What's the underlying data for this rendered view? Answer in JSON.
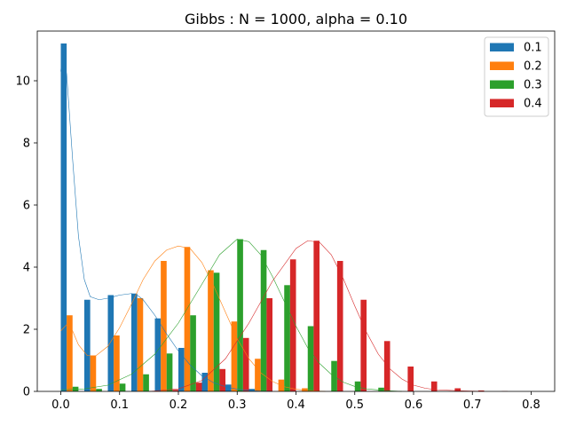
{
  "chart_data": {
    "type": "bar",
    "title": "Gibbs : N = 1000, alpha = 0.10",
    "xlabel": "",
    "ylabel": "",
    "xlim": [
      -0.04,
      0.84
    ],
    "ylim": [
      0,
      11.6
    ],
    "xticks": [
      0.0,
      0.1,
      0.2,
      0.3,
      0.4,
      0.5,
      0.6,
      0.7,
      0.8
    ],
    "xtick_labels": [
      "0.0",
      "0.1",
      "0.2",
      "0.3",
      "0.4",
      "0.5",
      "0.6",
      "0.7",
      "0.8"
    ],
    "yticks": [
      0,
      2,
      4,
      6,
      8,
      10
    ],
    "ytick_labels": [
      "0",
      "2",
      "4",
      "6",
      "8",
      "10"
    ],
    "bin_edges": [
      0.0,
      0.04,
      0.08,
      0.12,
      0.16,
      0.2,
      0.24,
      0.28,
      0.32,
      0.36,
      0.4,
      0.44,
      0.48,
      0.52,
      0.56,
      0.6,
      0.64,
      0.68,
      0.72,
      0.76,
      0.8
    ],
    "legend_position": "top-right",
    "grid": false,
    "series": [
      {
        "name": "0.1",
        "color": "#1f77b4",
        "values": [
          11.2,
          2.95,
          3.1,
          3.15,
          2.35,
          1.4,
          0.6,
          0.22,
          0.08,
          0,
          0,
          0,
          0,
          0,
          0,
          0,
          0,
          0,
          0,
          0
        ],
        "kde": [
          [
            0.0,
            10.3
          ],
          [
            0.003,
            11.0
          ],
          [
            0.01,
            10.2
          ],
          [
            0.02,
            7.5
          ],
          [
            0.03,
            5.0
          ],
          [
            0.04,
            3.6
          ],
          [
            0.05,
            3.05
          ],
          [
            0.065,
            2.95
          ],
          [
            0.08,
            3.0
          ],
          [
            0.1,
            3.1
          ],
          [
            0.12,
            3.15
          ],
          [
            0.13,
            3.1
          ],
          [
            0.14,
            2.95
          ],
          [
            0.16,
            2.45
          ],
          [
            0.18,
            1.85
          ],
          [
            0.2,
            1.3
          ],
          [
            0.22,
            0.85
          ],
          [
            0.24,
            0.5
          ],
          [
            0.26,
            0.28
          ],
          [
            0.28,
            0.15
          ],
          [
            0.3,
            0.07
          ],
          [
            0.32,
            0.03
          ],
          [
            0.34,
            0.01
          ],
          [
            0.36,
            0.0
          ]
        ]
      },
      {
        "name": "0.2",
        "color": "#ff7f0e",
        "values": [
          2.45,
          1.15,
          1.8,
          3.0,
          4.2,
          4.65,
          3.9,
          2.25,
          1.05,
          0.38,
          0.1,
          0,
          0,
          0,
          0,
          0,
          0,
          0,
          0,
          0
        ],
        "kde": [
          [
            0.0,
            1.95
          ],
          [
            0.01,
            2.15
          ],
          [
            0.02,
            1.95
          ],
          [
            0.03,
            1.5
          ],
          [
            0.045,
            1.15
          ],
          [
            0.06,
            1.15
          ],
          [
            0.08,
            1.45
          ],
          [
            0.1,
            2.05
          ],
          [
            0.12,
            2.8
          ],
          [
            0.14,
            3.6
          ],
          [
            0.16,
            4.2
          ],
          [
            0.18,
            4.55
          ],
          [
            0.2,
            4.68
          ],
          [
            0.22,
            4.6
          ],
          [
            0.24,
            4.15
          ],
          [
            0.26,
            3.4
          ],
          [
            0.28,
            2.55
          ],
          [
            0.3,
            1.7
          ],
          [
            0.32,
            1.05
          ],
          [
            0.34,
            0.6
          ],
          [
            0.36,
            0.32
          ],
          [
            0.38,
            0.15
          ],
          [
            0.4,
            0.07
          ],
          [
            0.42,
            0.03
          ],
          [
            0.45,
            0.0
          ]
        ]
      },
      {
        "name": "0.3",
        "color": "#2ca02c",
        "values": [
          0.15,
          0.08,
          0.25,
          0.55,
          1.22,
          2.45,
          3.82,
          4.9,
          4.55,
          3.42,
          2.1,
          0.98,
          0.32,
          0.12,
          0,
          0,
          0,
          0,
          0,
          0
        ],
        "kde": [
          [
            0.0,
            0.05
          ],
          [
            0.04,
            0.08
          ],
          [
            0.08,
            0.2
          ],
          [
            0.12,
            0.55
          ],
          [
            0.16,
            1.2
          ],
          [
            0.2,
            2.2
          ],
          [
            0.24,
            3.45
          ],
          [
            0.27,
            4.4
          ],
          [
            0.3,
            4.9
          ],
          [
            0.32,
            4.82
          ],
          [
            0.34,
            4.4
          ],
          [
            0.36,
            3.7
          ],
          [
            0.38,
            2.9
          ],
          [
            0.4,
            2.1
          ],
          [
            0.42,
            1.4
          ],
          [
            0.44,
            0.9
          ],
          [
            0.46,
            0.55
          ],
          [
            0.48,
            0.3
          ],
          [
            0.5,
            0.16
          ],
          [
            0.52,
            0.08
          ],
          [
            0.55,
            0.03
          ],
          [
            0.58,
            0.0
          ]
        ]
      },
      {
        "name": "0.4",
        "color": "#d62728",
        "values": [
          0,
          0,
          0,
          0,
          0.05,
          0.28,
          0.72,
          1.72,
          3.0,
          4.25,
          4.85,
          4.2,
          2.95,
          1.62,
          0.8,
          0.32,
          0.1,
          0.03,
          0.01,
          0
        ],
        "kde": [
          [
            0.15,
            0.0
          ],
          [
            0.2,
            0.08
          ],
          [
            0.24,
            0.35
          ],
          [
            0.28,
            1.05
          ],
          [
            0.32,
            2.2
          ],
          [
            0.36,
            3.55
          ],
          [
            0.4,
            4.6
          ],
          [
            0.42,
            4.85
          ],
          [
            0.44,
            4.8
          ],
          [
            0.46,
            4.4
          ],
          [
            0.48,
            3.65
          ],
          [
            0.5,
            2.75
          ],
          [
            0.52,
            1.9
          ],
          [
            0.54,
            1.2
          ],
          [
            0.56,
            0.72
          ],
          [
            0.58,
            0.4
          ],
          [
            0.6,
            0.2
          ],
          [
            0.62,
            0.1
          ],
          [
            0.64,
            0.05
          ],
          [
            0.68,
            0.02
          ],
          [
            0.72,
            0.0
          ]
        ]
      }
    ]
  }
}
